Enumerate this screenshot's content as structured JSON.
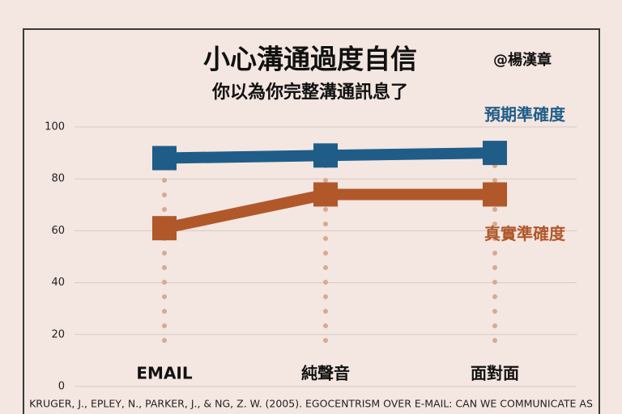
{
  "chart_data": {
    "type": "line",
    "title": "小心溝通過度自信",
    "subtitle": "你以為你完整溝通訊息了",
    "author": "@楊漢章",
    "source": "KRUGER, J., EPLEY, N., PARKER, J., & NG, Z. W. (2005). EGOCENTRISM OVER E-MAIL: CAN WE COMMUNICATE AS",
    "categories": [
      "EMAIL",
      "純聲音",
      "面對面"
    ],
    "series": [
      {
        "name": "預期準確度",
        "color": "#1f5d88",
        "values": [
          88,
          89,
          90
        ]
      },
      {
        "name": "真實準確度",
        "color": "#b0582a",
        "values": [
          61,
          74,
          74
        ]
      }
    ],
    "ylim": [
      0,
      100
    ],
    "yticks": [
      0,
      20,
      40,
      60,
      80,
      100
    ],
    "grid": true
  }
}
